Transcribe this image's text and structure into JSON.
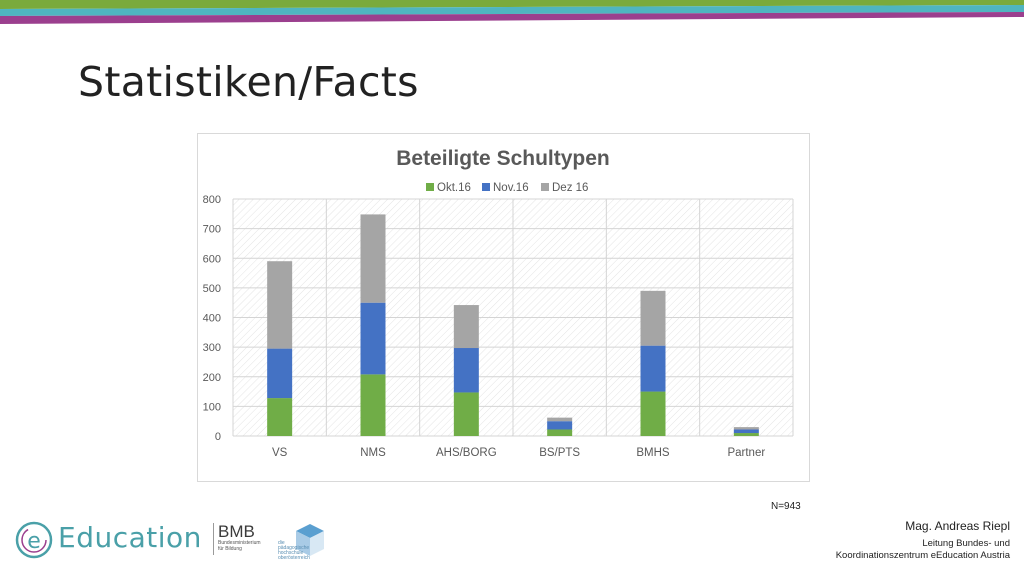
{
  "slide": {
    "title": "Statistiken/Facts",
    "note": "N=943"
  },
  "colors": {
    "stripe_green": "#7aaa3c",
    "stripe_teal": "#4fb5c0",
    "stripe_purple": "#9b3f8e",
    "okt": "#70ad47",
    "nov": "#4472c4",
    "dez": "#a5a5a5"
  },
  "chart_data": {
    "type": "bar",
    "stacked": true,
    "title": "Beteiligte Schultypen",
    "categories": [
      "VS",
      "NMS",
      "AHS/BORG",
      "BS/PTS",
      "BMHS",
      "Partner"
    ],
    "series": [
      {
        "name": "Okt.16",
        "color": "#70ad47",
        "values": [
          128,
          208,
          147,
          22,
          150,
          10
        ]
      },
      {
        "name": "Nov.16",
        "color": "#4472c4",
        "values": [
          167,
          242,
          150,
          28,
          155,
          12
        ]
      },
      {
        "name": "Dez 16",
        "color": "#a5a5a5",
        "values": [
          295,
          298,
          145,
          12,
          185,
          8
        ]
      }
    ],
    "ylim": [
      0,
      800
    ],
    "yticks": [
      0,
      100,
      200,
      300,
      400,
      500,
      600,
      700,
      800
    ],
    "legend": "top",
    "grid": true
  },
  "footer": {
    "logo_text": "Education",
    "logo_letter": "e",
    "bmb_abbr": "BMB",
    "bmb_line1": "Bundesministerium",
    "bmb_line2": "für Bildung",
    "ph_line1": "die pädagogische",
    "ph_line2": "hochschule",
    "ph_line3": "oberösterreich",
    "author_name": "Mag. Andreas Riepl",
    "author_role_1": "Leitung Bundes- und",
    "author_role_2": "Koordinationszentrum eEducation Austria"
  }
}
